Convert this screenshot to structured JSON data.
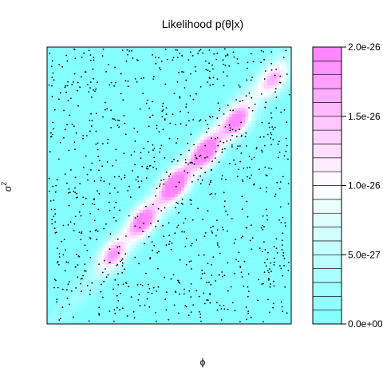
{
  "chart_data": {
    "type": "heatmap",
    "title": "Likelihood p(θ|x)",
    "xlabel": "ϕ",
    "ylabel": "σ",
    "ylabel_superscript": "2",
    "colorbar": {
      "min": 0.0,
      "max": 2e-26,
      "n_levels": 20,
      "low_color": "#80ffff",
      "mid_color": "#ffffff",
      "high_color": "#ff80ff",
      "ticks": [
        {
          "value": 0.0,
          "label": "0.0e+00"
        },
        {
          "value": 5e-27,
          "label": "5.0e-27"
        },
        {
          "value": 1e-26,
          "label": "1.0e-26"
        },
        {
          "value": 1.5e-26,
          "label": "1.5e-26"
        },
        {
          "value": 2e-26,
          "label": "2.0e-26"
        }
      ]
    },
    "scatter_points": {
      "color": "#000000",
      "approx_count": 1000
    },
    "ridge_peaks": [
      {
        "x": 0.27,
        "y": 0.25,
        "value": 1.3e-26
      },
      {
        "x": 0.39,
        "y": 0.37,
        "value": 1.6e-26
      },
      {
        "x": 0.52,
        "y": 0.5,
        "value": 1.8e-26
      },
      {
        "x": 0.65,
        "y": 0.62,
        "value": 1.7e-26
      },
      {
        "x": 0.78,
        "y": 0.73,
        "value": 1.5e-26
      },
      {
        "x": 0.93,
        "y": 0.88,
        "value": 1.2e-26
      }
    ],
    "axes_ticks_shown": false
  }
}
